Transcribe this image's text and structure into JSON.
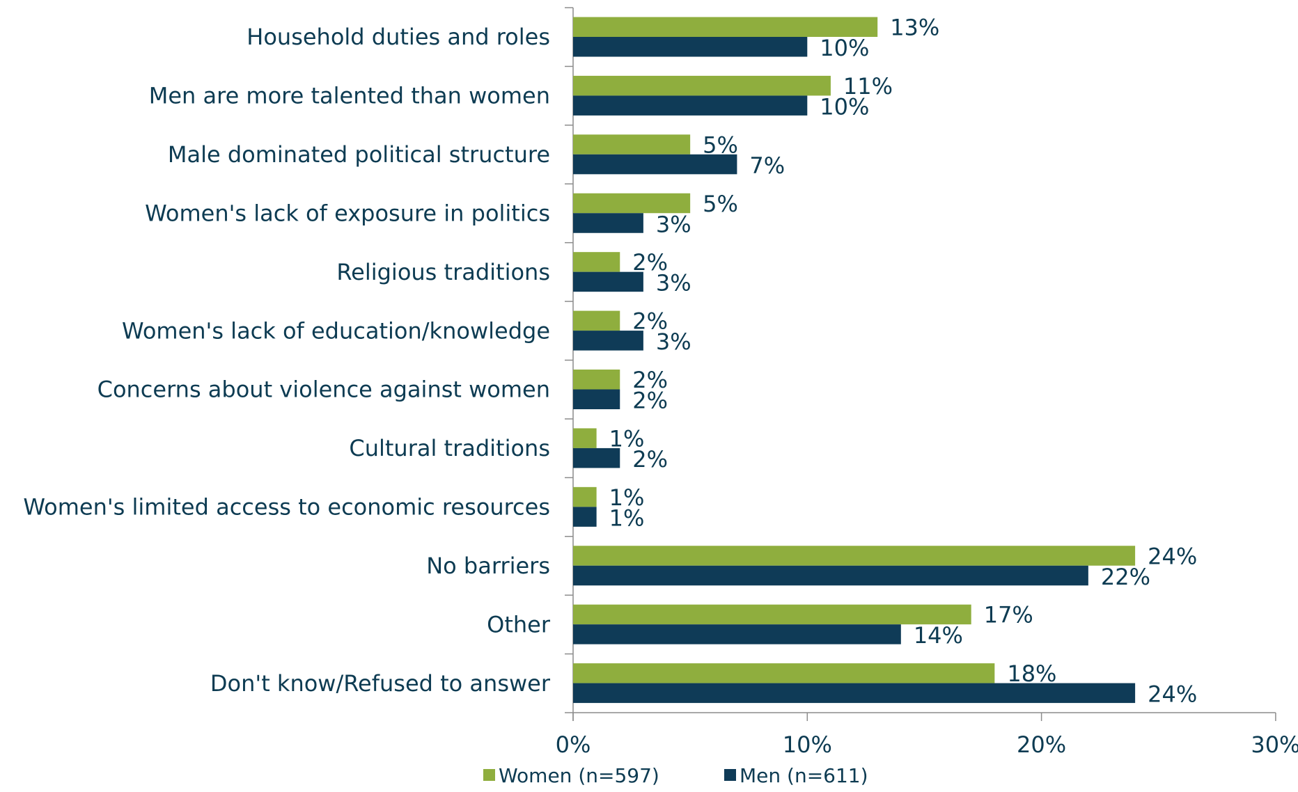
{
  "chart_data": {
    "type": "bar",
    "orientation": "horizontal",
    "categories": [
      "Household duties and roles",
      "Men are more talented than women",
      "Male dominated political structure",
      "Women's lack of exposure in politics",
      "Religious traditions",
      "Women's lack of education/knowledge",
      "Concerns about violence against women",
      "Cultural traditions",
      "Women's limited access to economic resources",
      "No barriers",
      "Other",
      "Don't know/Refused to answer"
    ],
    "series": [
      {
        "name": "Women (n=597)",
        "color": "#8fae3e",
        "values": [
          13,
          11,
          5,
          5,
          2,
          2,
          2,
          1,
          1,
          24,
          17,
          18
        ],
        "labels": [
          "13%",
          "11%",
          "5%",
          "5%",
          "2%",
          "2%",
          "2%",
          "1%",
          "1%",
          "24%",
          "17%",
          "18%"
        ]
      },
      {
        "name": "Men (n=611)",
        "color": "#0f3b57",
        "values": [
          10,
          10,
          7,
          3,
          3,
          3,
          2,
          2,
          1,
          22,
          14,
          24
        ],
        "labels": [
          "10%",
          "10%",
          "7%",
          "3%",
          "3%",
          "3%",
          "2%",
          "2%",
          "1%",
          "22%",
          "14%",
          "24%"
        ]
      }
    ],
    "xlim": [
      0,
      30
    ],
    "xticks": [
      0,
      10,
      20,
      30
    ],
    "xtick_labels": [
      "0%",
      "10%",
      "20%",
      "30%"
    ],
    "grid": false,
    "legend_position": "bottom"
  }
}
